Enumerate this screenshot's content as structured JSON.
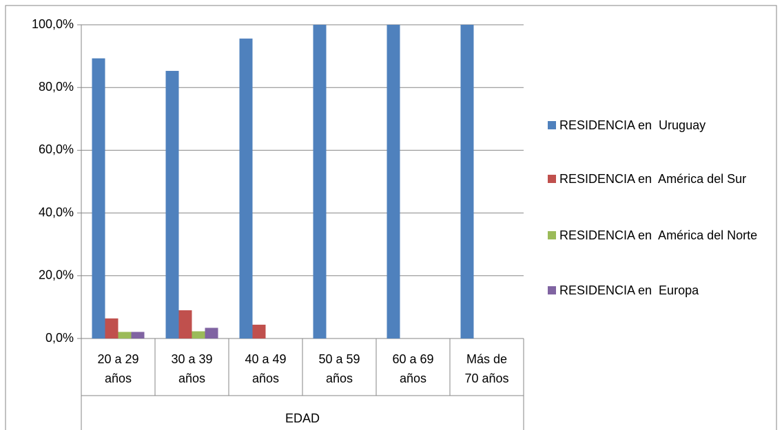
{
  "chart_data": {
    "type": "bar",
    "x_label": "EDAD",
    "categories": [
      "20 a 29 años",
      "30 a 39 años",
      "40 a 49 años",
      "50 a 59 años",
      "60 a 69 años",
      "Más de 70 años"
    ],
    "series": [
      {
        "name": "RESIDENCIA en  Uruguay",
        "color": "#4f81bd",
        "values": [
          89.3,
          85.3,
          95.6,
          100,
          100,
          100
        ]
      },
      {
        "name": "RESIDENCIA en  América del Sur",
        "color": "#c0504d",
        "values": [
          6.4,
          9.0,
          4.4,
          0,
          0,
          0
        ]
      },
      {
        "name": "RESIDENCIA en  América del Norte",
        "color": "#9bbb59",
        "values": [
          2.1,
          2.3,
          0,
          0,
          0,
          0
        ]
      },
      {
        "name": "RESIDENCIA en  Europa",
        "color": "#8064a2",
        "values": [
          2.1,
          3.4,
          0,
          0,
          0,
          0
        ]
      }
    ],
    "ylim": [
      0,
      100
    ],
    "yticks": [
      {
        "value": 0,
        "label": "0,0%"
      },
      {
        "value": 20,
        "label": "20,0%"
      },
      {
        "value": 40,
        "label": "40,0%"
      },
      {
        "value": 60,
        "label": "60,0%"
      },
      {
        "value": 80,
        "label": "80,0%"
      },
      {
        "value": 100,
        "label": "100,0%"
      }
    ],
    "grid": true,
    "legend": "right"
  }
}
